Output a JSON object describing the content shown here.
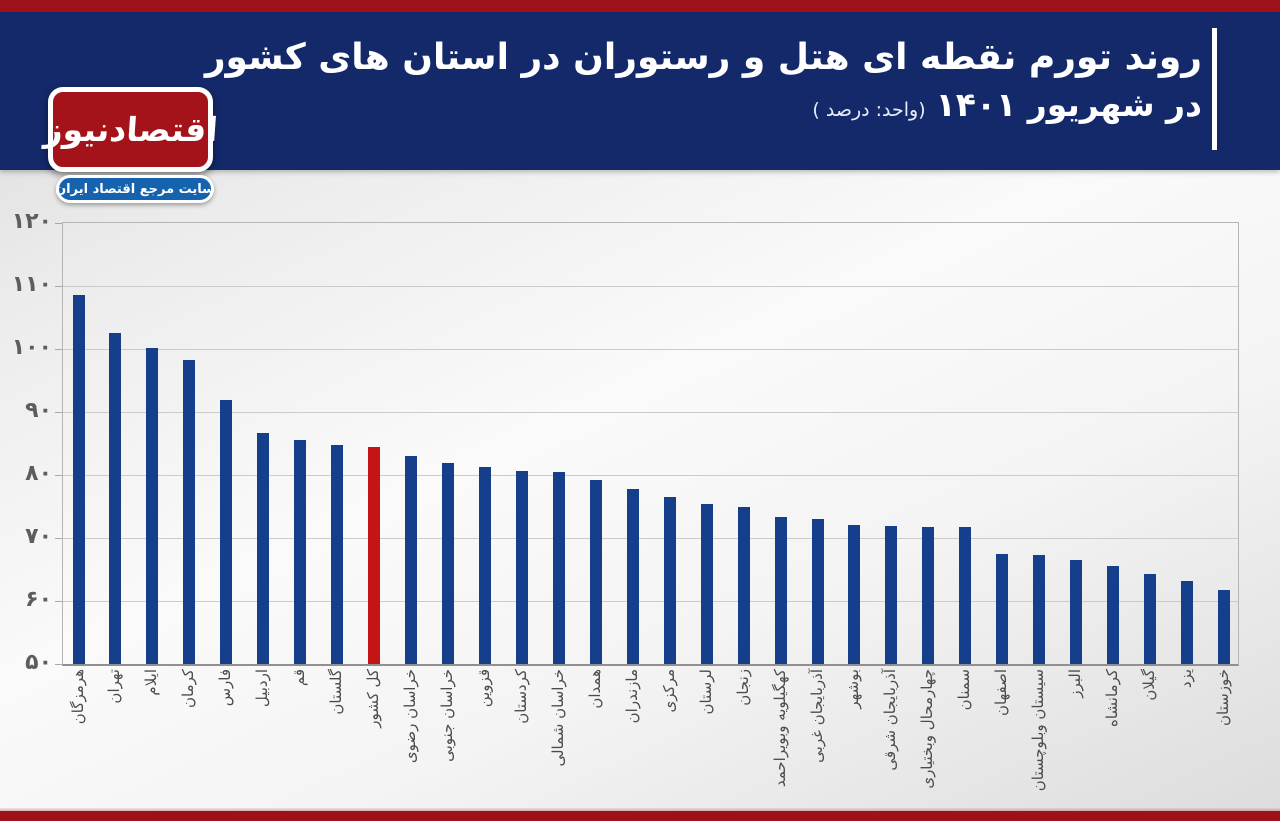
{
  "header": {
    "title_line1": "روند تورم نقطه ای هتل و رستوران در استان های کشور",
    "title_line2": "در شهریور ۱۴۰۱",
    "title_unit": "(واحد: درصد )",
    "logo_text": "اقتصادنیوز",
    "logo_subtitle": "سایت مرجع اقتصاد ایران"
  },
  "colors": {
    "top_strip": "#9e1118",
    "header_bg": "#13296a",
    "logo_red": "#a31319",
    "pill_blue": "#1563ae",
    "bar_blue": "#153f8b",
    "bar_highlight_red": "#c41414",
    "bottom_strip": "#9e1118"
  },
  "chart_data": {
    "type": "bar",
    "title": "روند تورم نقطه ای هتل و رستوران در استان های کشور در شهریور ۱۴۰۱",
    "unit_label": "درصد",
    "ylim": [
      50,
      120
    ],
    "grid": true,
    "legend_position": "none",
    "yticks": [
      {
        "value": 50,
        "label": "۵۰"
      },
      {
        "value": 60,
        "label": "۶۰"
      },
      {
        "value": 70,
        "label": "۷۰"
      },
      {
        "value": 80,
        "label": "۸۰"
      },
      {
        "value": 90,
        "label": "۹۰"
      },
      {
        "value": 100,
        "label": "۱۰۰"
      },
      {
        "value": 110,
        "label": "۱۱۰"
      },
      {
        "value": 120,
        "label": "۱۲۰"
      }
    ],
    "highlight_index": 8,
    "categories": [
      "هرمزگان",
      "تهران",
      "ایلام",
      "کرمان",
      "فارس",
      "اردبیل",
      "قم",
      "گلستان",
      "کل کشور",
      "خراسان رضوی",
      "خراسان جنوبی",
      "قزوین",
      "کردستان",
      "خراسان شمالی",
      "همدان",
      "مازندران",
      "مرکزی",
      "لرستان",
      "زنجان",
      "کهگیلویه وبویراحمد",
      "آذربایجان غربی",
      "بوشهر",
      "آذربایجان شرقی",
      "چهارمحال وبختیاری",
      "سمنان",
      "اصفهان",
      "سیستان وبلوچستان",
      "البرز",
      "کرمانشاه",
      "گیلان",
      "یزد",
      "خوزستان"
    ],
    "values": [
      108.5,
      102.5,
      100.2,
      98.2,
      91.9,
      86.7,
      85.5,
      84.8,
      84.4,
      83.0,
      81.9,
      81.2,
      80.7,
      80.4,
      79.2,
      77.8,
      76.5,
      75.4,
      75.0,
      73.3,
      73.0,
      72.0,
      71.9,
      71.8,
      71.7,
      67.4,
      67.3,
      66.5,
      65.6,
      64.3,
      63.1,
      61.8
    ]
  }
}
